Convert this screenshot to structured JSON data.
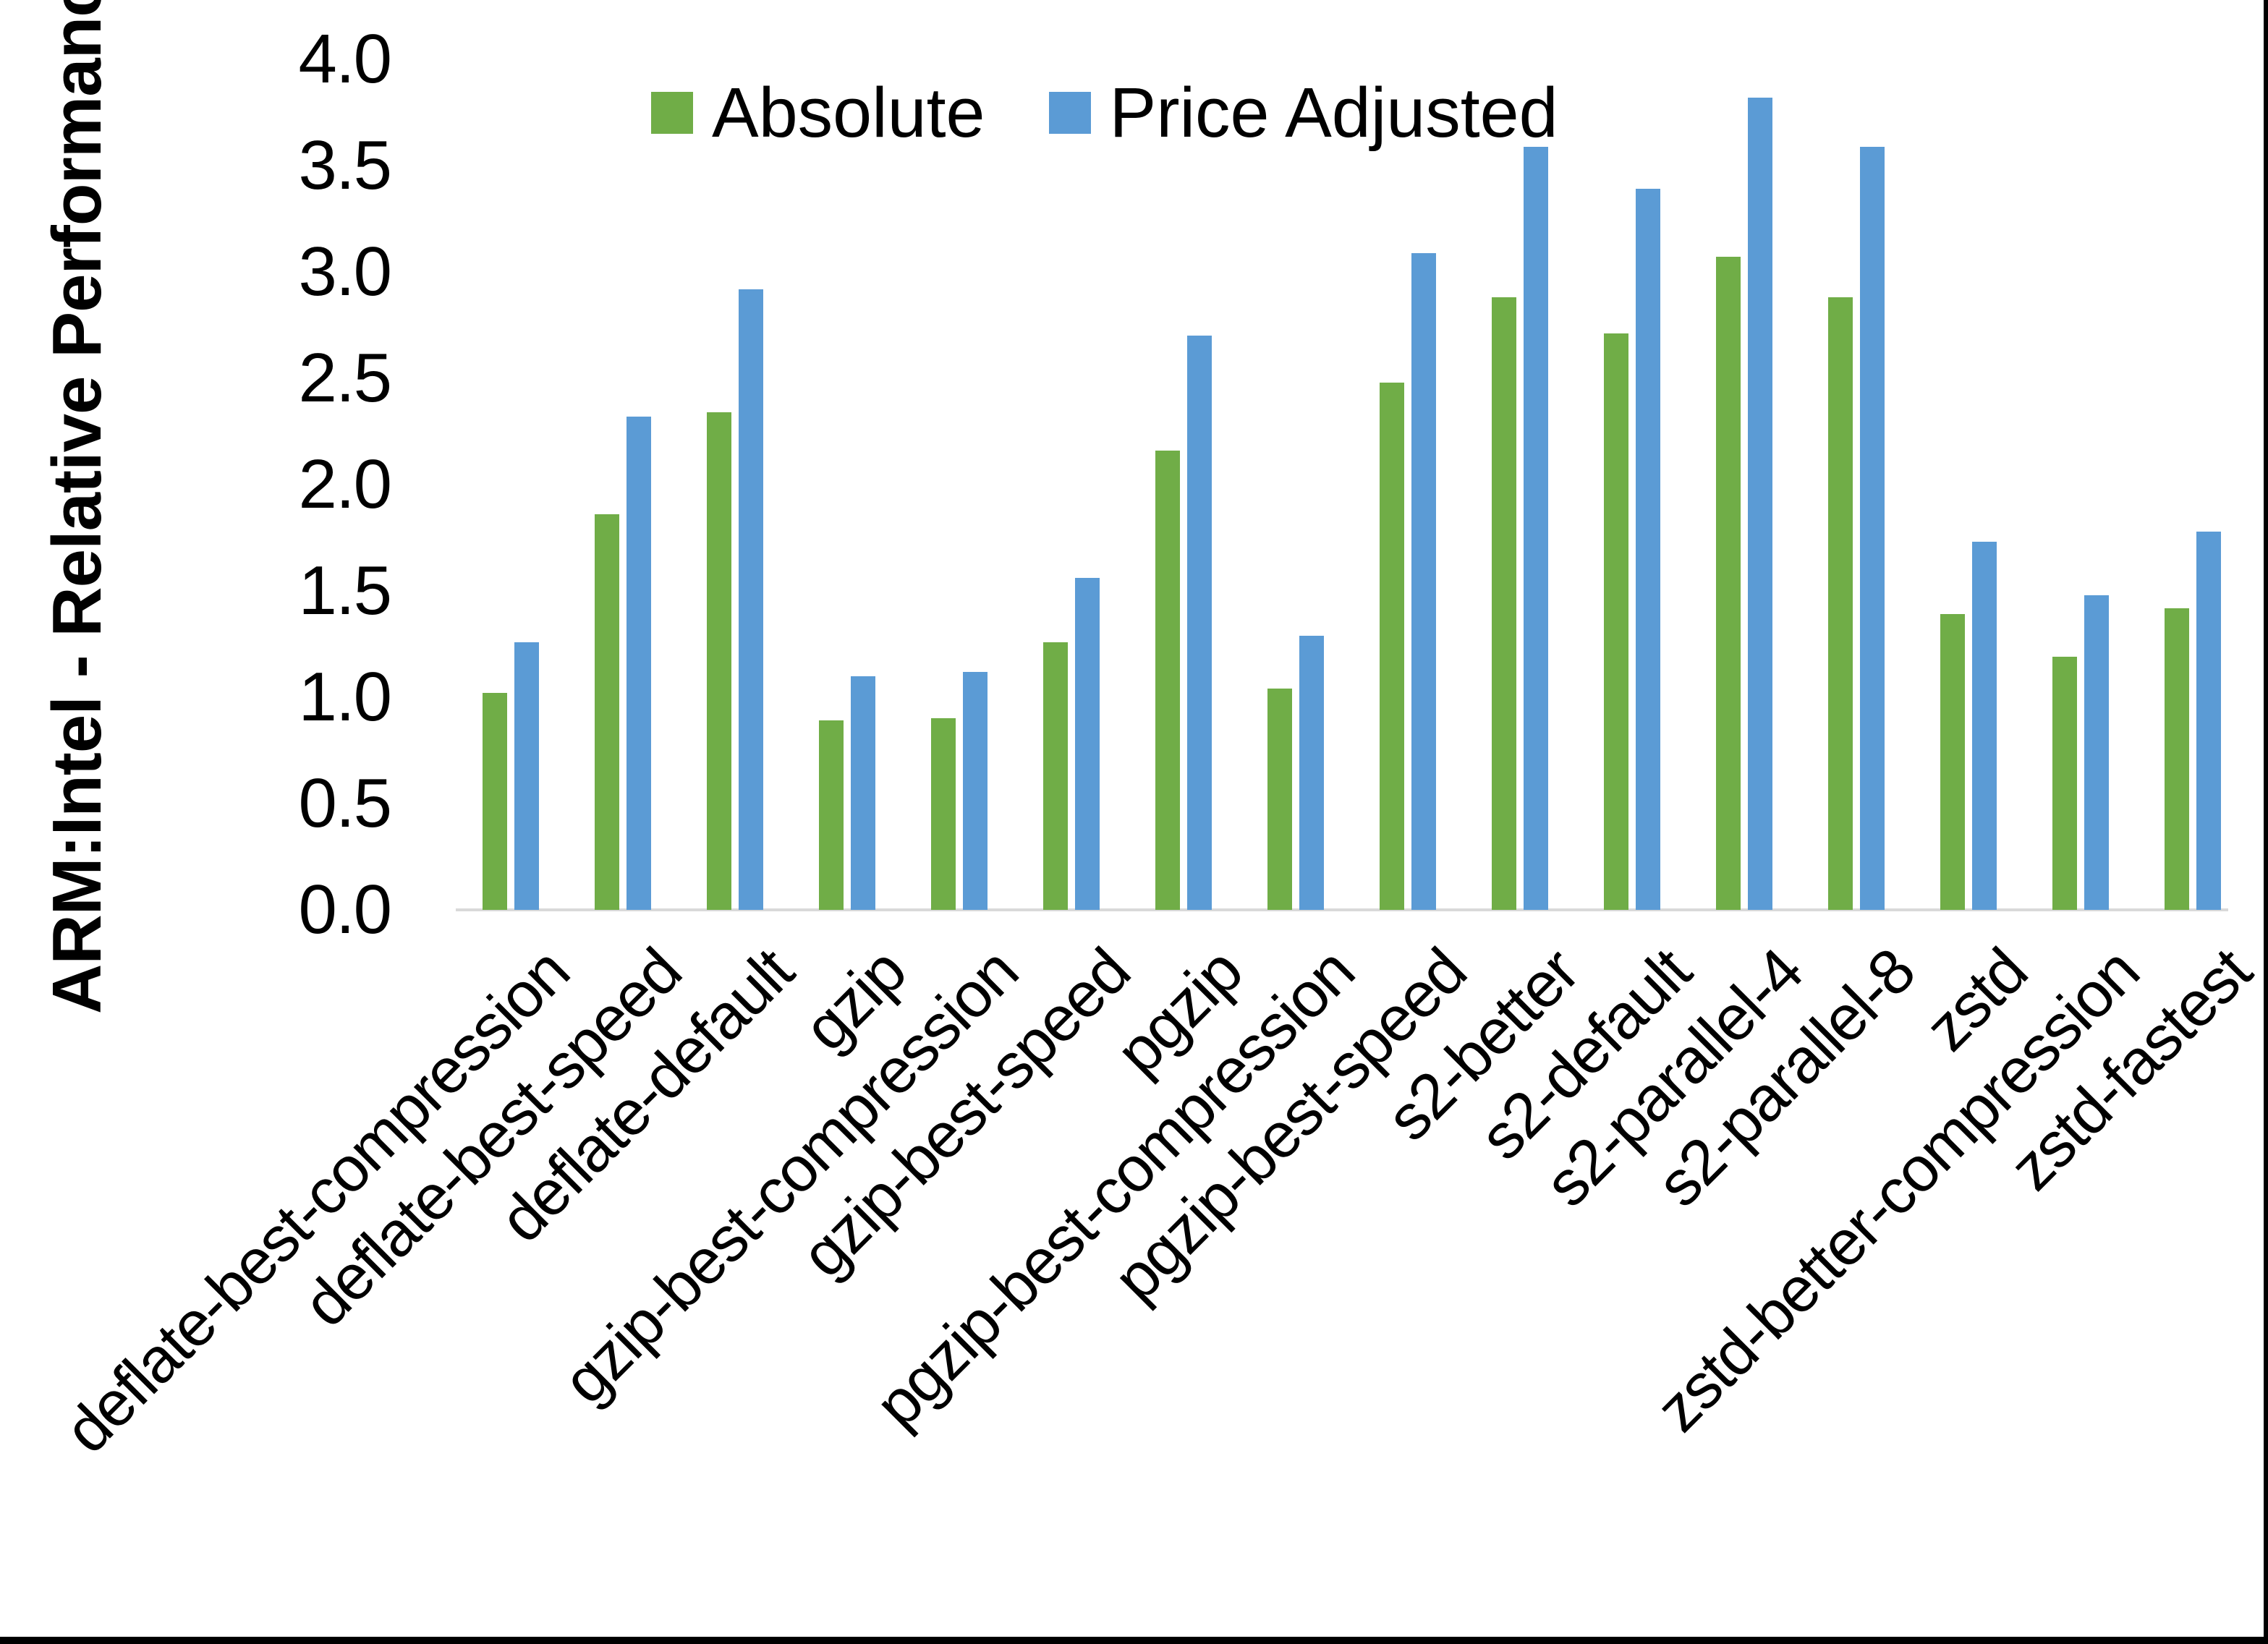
{
  "chart_data": {
    "type": "bar",
    "title": "",
    "xlabel": "",
    "ylabel": "ARM:Intel - Relative Performance",
    "ylim": [
      0.0,
      4.0
    ],
    "ytick_step": 0.5,
    "ytick_labels": [
      "0.0",
      "0.5",
      "1.0",
      "1.5",
      "2.0",
      "2.5",
      "3.0",
      "3.5",
      "4.0"
    ],
    "grid": false,
    "legend_position": "top-center",
    "background": "#ffffff",
    "axis_line_color": "#d9d9d9",
    "text_color": "#000000",
    "categories": [
      "deflate-best-compression",
      "deflate-best-speed",
      "deflate-default",
      "gzip",
      "gzip-best-compression",
      "gzip-best-speed",
      "pgzip",
      "pgzip-best-compression",
      "pgzip-best-speed",
      "s2-better",
      "s2-default",
      "s2-parallel-4",
      "s2-parallel-8",
      "zstd",
      "zstd-better-compression",
      "zstd-fastest"
    ],
    "series": [
      {
        "name": "Absolute",
        "color": "#70ad47",
        "values": [
          1.02,
          1.86,
          2.34,
          0.89,
          0.9,
          1.26,
          2.16,
          1.04,
          2.48,
          2.88,
          2.71,
          3.07,
          2.88,
          1.39,
          1.19,
          1.42
        ]
      },
      {
        "name": "Price Adjusted",
        "color": "#5b9bd5",
        "values": [
          1.26,
          2.32,
          2.92,
          1.1,
          1.12,
          1.56,
          2.7,
          1.29,
          3.09,
          3.59,
          3.39,
          3.82,
          3.59,
          1.73,
          1.48,
          1.78
        ]
      }
    ]
  }
}
